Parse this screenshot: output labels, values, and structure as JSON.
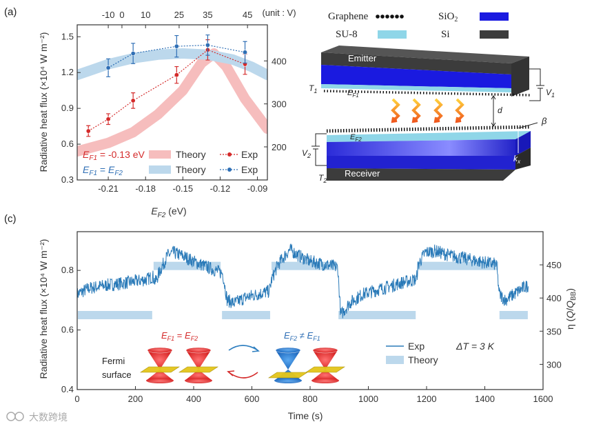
{
  "panels": {
    "a": "(a)",
    "c": "(c)"
  },
  "watermark": "大数跨境",
  "chart_data": [
    {
      "type": "scatter",
      "panel": "(a)",
      "xlabel": "E_F2 (eV)",
      "xlabel_main": "E",
      "xlabel_sub": "F2",
      "xlabel_unit": " (eV)",
      "ylabel": "Radiative heat flux (×10⁴ W m⁻²)",
      "ylabel_right": "",
      "xlim": [
        -0.235,
        -0.082
      ],
      "ylim": [
        0.3,
        1.6
      ],
      "y2lim": [
        123,
        484
      ],
      "xticks": [
        -0.21,
        -0.18,
        -0.15,
        -0.12,
        -0.09
      ],
      "xtick_labels": [
        "-0.21",
        "-0.18",
        "-0.15",
        "-0.12",
        "-0.09"
      ],
      "yticks": [
        0.3,
        0.6,
        0.9,
        1.2,
        1.5
      ],
      "ytick_labels": [
        "0.3",
        "0.6",
        "0.9",
        "1.2",
        "1.5"
      ],
      "y2ticks": [
        200,
        300,
        400
      ],
      "y2tick_labels": [
        "200",
        "300",
        "400"
      ],
      "top_axis": {
        "unit": "(unit : V)",
        "ticks": [
          -0.21,
          -0.199,
          -0.18,
          -0.153,
          -0.13,
          -0.098
        ],
        "labels": [
          "-10",
          "0",
          "10",
          "25",
          "35",
          "45"
        ]
      },
      "series": [
        {
          "name": "Exp",
          "group": "EF1 = -0.13 eV",
          "color": "#d42a2a",
          "x": [
            -0.226,
            -0.21,
            -0.19,
            -0.155,
            -0.13,
            -0.1
          ],
          "y": [
            0.71,
            0.81,
            0.965,
            1.18,
            1.39,
            1.27
          ],
          "err": [
            0.045,
            0.045,
            0.065,
            0.07,
            0.085,
            0.085
          ]
        },
        {
          "name": "Exp",
          "group": "EF1 = EF2",
          "color": "#2f6fb5",
          "x": [
            -0.21,
            -0.19,
            -0.155,
            -0.13,
            -0.1
          ],
          "y": [
            1.24,
            1.36,
            1.42,
            1.43,
            1.37
          ],
          "err": [
            0.075,
            0.085,
            0.09,
            0.085,
            0.09
          ]
        },
        {
          "name": "Theory",
          "group": "EF1 = -0.13 eV",
          "color": "#f6bdbd",
          "x": [
            -0.235,
            -0.21,
            -0.19,
            -0.17,
            -0.15,
            -0.135,
            -0.125,
            -0.115,
            -0.1,
            -0.082
          ],
          "y": [
            0.54,
            0.61,
            0.7,
            0.85,
            1.05,
            1.28,
            1.36,
            1.25,
            0.98,
            0.73
          ]
        },
        {
          "name": "Theory",
          "group": "EF1 = EF2",
          "color": "#bcd8ec",
          "x": [
            -0.235,
            -0.21,
            -0.19,
            -0.17,
            -0.15,
            -0.13,
            -0.11,
            -0.095,
            -0.082
          ],
          "y": [
            1.18,
            1.27,
            1.32,
            1.35,
            1.36,
            1.35,
            1.31,
            1.25,
            1.18
          ]
        }
      ],
      "legend": [
        {
          "label_main": "E",
          "label_sub": "F1",
          "label_rest": " = -0.13 eV",
          "theory": "Theory",
          "exp": "Exp",
          "color": "#d42a2a",
          "band": "#f6bdbd"
        },
        {
          "label_main": "E",
          "label_sub": "F1",
          "label_rest": " = ",
          "label_main2": "E",
          "label_sub2": "F2",
          "theory": "Theory",
          "exp": "Exp",
          "color": "#2f6fb5",
          "band": "#bcd8ec"
        }
      ]
    },
    {
      "type": "line",
      "panel": "(c)",
      "xlabel": "Time (s)",
      "ylabel": "Radiative heat flux (×10⁴ W m⁻²)",
      "ylabel_right": "η (Q/Q_BB)",
      "ylabel_right_main": "η (",
      "ylabel_right_q": "Q",
      "ylabel_right_slash": "/",
      "ylabel_right_q2": "Q",
      "ylabel_right_sub": "BB",
      "ylabel_right_close": ")",
      "xlim": [
        0,
        1600
      ],
      "ylim": [
        0.4,
        0.93
      ],
      "y2lim": [
        262,
        500
      ],
      "xticks": [
        0,
        200,
        400,
        600,
        800,
        1000,
        1200,
        1400,
        1600
      ],
      "xtick_labels": [
        "0",
        "200",
        "400",
        "600",
        "800",
        "1000",
        "1200",
        "1400",
        "1600"
      ],
      "yticks": [
        0.4,
        0.6,
        0.8
      ],
      "ytick_labels": [
        "0.4",
        "0.6",
        "0.8"
      ],
      "y2ticks": [
        300,
        350,
        400,
        450
      ],
      "y2tick_labels": [
        "300",
        "350",
        "400",
        "450"
      ],
      "series": [
        {
          "name": "Exp",
          "color": "#2a7ab8",
          "x": [
            0,
            40,
            100,
            180,
            240,
            260,
            268,
            285,
            310,
            330,
            360,
            400,
            450,
            500,
            515,
            540,
            580,
            620,
            660,
            668,
            690,
            730,
            760,
            800,
            850,
            895,
            905,
            935,
            980,
            1050,
            1120,
            1165,
            1172,
            1195,
            1230,
            1280,
            1330,
            1380,
            1440,
            1450,
            1470,
            1500,
            1530,
            1550
          ],
          "y": [
            0.72,
            0.74,
            0.75,
            0.76,
            0.77,
            0.78,
            0.76,
            0.8,
            0.85,
            0.86,
            0.85,
            0.83,
            0.81,
            0.79,
            0.7,
            0.69,
            0.71,
            0.72,
            0.73,
            0.77,
            0.82,
            0.87,
            0.85,
            0.83,
            0.82,
            0.81,
            0.65,
            0.69,
            0.72,
            0.74,
            0.76,
            0.77,
            0.82,
            0.86,
            0.865,
            0.85,
            0.84,
            0.83,
            0.82,
            0.72,
            0.7,
            0.72,
            0.74,
            0.75
          ]
        },
        {
          "name": "Theory",
          "color": "#bcd8ec",
          "segments": [
            {
              "x": [
                0,
                260
              ],
              "y": 0.65
            },
            {
              "x": [
                260,
                495
              ],
              "y": 0.815
            },
            {
              "x": [
                495,
                665
              ],
              "y": 0.65
            },
            {
              "x": [
                665,
                895
              ],
              "y": 0.815
            },
            {
              "x": [
                895,
                1165
              ],
              "y": 0.65
            },
            {
              "x": [
                1165,
                1448
              ],
              "y": 0.815
            },
            {
              "x": [
                1448,
                1550
              ],
              "y": 0.65
            }
          ]
        }
      ],
      "legend": [
        {
          "label": "Exp",
          "color": "#2a7ab8"
        },
        {
          "label": "Theory",
          "color": "#bcd8ec"
        }
      ],
      "annotations": {
        "delta_t": "ΔT = 3 K",
        "fermi_line1": "Fermi",
        "fermi_line2": "surface",
        "eq_main": "E",
        "eq_sub": "F1",
        "eq_op": " = ",
        "eq_main2": "E",
        "eq_sub2": "F2",
        "neq_main": "E",
        "neq_sub": "F2",
        "neq_op": " ≠ ",
        "neq_main2": "E",
        "neq_sub2": "F1"
      }
    }
  ],
  "device": {
    "legend": [
      {
        "label": "Graphene",
        "swatch": "dots"
      },
      {
        "label_main": "SiO",
        "label_sub": "2",
        "swatch": "#1a1ae0"
      },
      {
        "label": "SU-8",
        "swatch": "#8fd6e8"
      },
      {
        "label": "Si",
        "swatch": "#3c3c3c"
      }
    ],
    "emitter": "Emitter",
    "receiver": "Receiver",
    "T1_main": "T",
    "T1_sub": "1",
    "T2_main": "T",
    "T2_sub": "2",
    "V1_main": "V",
    "V1_sub": "1",
    "V2_main": "V",
    "V2_sub": "2",
    "EF1_main": "E",
    "EF1_sub": "F1",
    "EF2_main": "E",
    "EF2_sub": "F2",
    "gap": "d",
    "beta": "β",
    "kx_main": "k",
    "kx_sub": "x"
  }
}
